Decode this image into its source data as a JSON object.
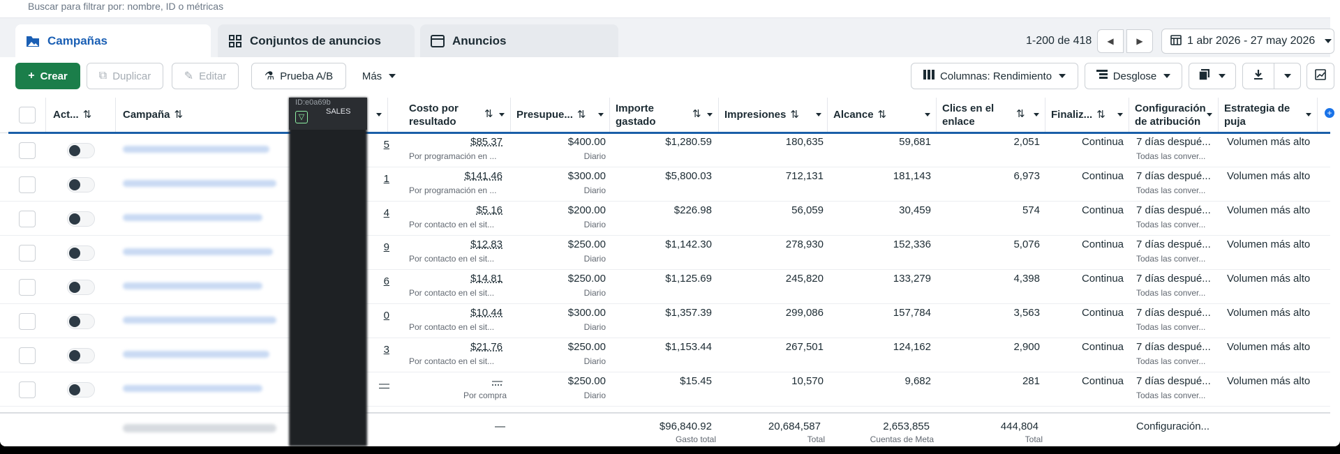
{
  "search": {
    "placeholder": "Buscar para filtrar por: nombre, ID o métricas"
  },
  "tabs": [
    {
      "label": "Campañas",
      "icon": "folder-icon",
      "active": true
    },
    {
      "label": "Conjuntos de anuncios",
      "icon": "grid-icon",
      "active": false
    },
    {
      "label": "Anuncios",
      "icon": "ad-icon",
      "active": false
    }
  ],
  "pager": {
    "text": "1-200 de 418"
  },
  "date_range": {
    "label": "1 abr 2026 - 27 may 2026"
  },
  "toolbar": {
    "create": "Crear",
    "duplicate": "Duplicar",
    "edit": "Editar",
    "ab_test": "Prueba A/B",
    "more": "Más",
    "columns": "Columnas: Rendimiento",
    "breakdown": "Desglose"
  },
  "overlay": {
    "id_text": "ID:e0a69b",
    "sales": "SALES"
  },
  "columns": {
    "active": "Act...",
    "campaign": "Campaña",
    "cost_line1": "Costo por",
    "cost_line2": "resultado",
    "budget": "Presupue...",
    "spent_line1": "Importe",
    "spent_line2": "gastado",
    "impressions": "Impresiones",
    "reach": "Alcance",
    "clicks_line1": "Clics en el",
    "clicks_line2": "enlace",
    "ends": "Finaliz...",
    "attribution_line1": "Configuración",
    "attribution_line2": "de atribución",
    "bid_line1": "Estrategia de",
    "bid_line2": "puja"
  },
  "rows": [
    {
      "result_digit": "5",
      "cost": "$85.37",
      "cost_sub": "Por programación en ...",
      "budget": "$400.00",
      "budget_sub": "Diario",
      "spent": "$1,280.59",
      "impressions": "180,635",
      "reach": "59,681",
      "clicks": "2,051",
      "ends": "Continua",
      "attribution": "7 días despué...",
      "attribution_sub": "Todas las conver...",
      "bid": "Volumen más alto"
    },
    {
      "result_digit": "1",
      "cost": "$141.46",
      "cost_sub": "Por programación en ...",
      "budget": "$300.00",
      "budget_sub": "Diario",
      "spent": "$5,800.03",
      "impressions": "712,131",
      "reach": "181,143",
      "clicks": "6,973",
      "ends": "Continua",
      "attribution": "7 días despué...",
      "attribution_sub": "Todas las conver...",
      "bid": "Volumen más alto"
    },
    {
      "result_digit": "4",
      "cost": "$5.16",
      "cost_sub": "Por contacto en el sit...",
      "budget": "$200.00",
      "budget_sub": "Diario",
      "spent": "$226.98",
      "impressions": "56,059",
      "reach": "30,459",
      "clicks": "574",
      "ends": "Continua",
      "attribution": "7 días despué...",
      "attribution_sub": "Todas las conver...",
      "bid": "Volumen más alto"
    },
    {
      "result_digit": "9",
      "cost": "$12.83",
      "cost_sub": "Por contacto en el sit...",
      "budget": "$250.00",
      "budget_sub": "Diario",
      "spent": "$1,142.30",
      "impressions": "278,930",
      "reach": "152,336",
      "clicks": "5,076",
      "ends": "Continua",
      "attribution": "7 días despué...",
      "attribution_sub": "Todas las conver...",
      "bid": "Volumen más alto"
    },
    {
      "result_digit": "6",
      "cost": "$14.81",
      "cost_sub": "Por contacto en el sit...",
      "budget": "$250.00",
      "budget_sub": "Diario",
      "spent": "$1,125.69",
      "impressions": "245,820",
      "reach": "133,279",
      "clicks": "4,398",
      "ends": "Continua",
      "attribution": "7 días despué...",
      "attribution_sub": "Todas las conver...",
      "bid": "Volumen más alto"
    },
    {
      "result_digit": "0",
      "cost": "$10.44",
      "cost_sub": "Por contacto en el sit...",
      "budget": "$300.00",
      "budget_sub": "Diario",
      "spent": "$1,357.39",
      "impressions": "299,086",
      "reach": "157,784",
      "clicks": "3,563",
      "ends": "Continua",
      "attribution": "7 días despué...",
      "attribution_sub": "Todas las conver...",
      "bid": "Volumen más alto"
    },
    {
      "result_digit": "3",
      "cost": "$21.76",
      "cost_sub": "Por contacto en el sit...",
      "budget": "$250.00",
      "budget_sub": "Diario",
      "spent": "$1,153.44",
      "impressions": "267,501",
      "reach": "124,162",
      "clicks": "2,900",
      "ends": "Continua",
      "attribution": "7 días despué...",
      "attribution_sub": "Todas las conver...",
      "bid": "Volumen más alto"
    },
    {
      "result_digit": "—",
      "cost": "—",
      "cost_sub": "Por compra",
      "budget": "$250.00",
      "budget_sub": "Diario",
      "spent": "$15.45",
      "impressions": "10,570",
      "reach": "9,682",
      "clicks": "281",
      "ends": "Continua",
      "attribution": "7 días despué...",
      "attribution_sub": "Todas las conver...",
      "bid": "Volumen más alto"
    }
  ],
  "footer": {
    "cost": "—",
    "spent": "$96,840.92",
    "spent_sub": "Gasto total",
    "impressions": "20,684,587",
    "impressions_sub": "Total",
    "reach": "2,653,855",
    "reach_sub": "Cuentas de Meta",
    "clicks": "444,804",
    "clicks_sub": "Total",
    "attribution": "Configuración..."
  }
}
